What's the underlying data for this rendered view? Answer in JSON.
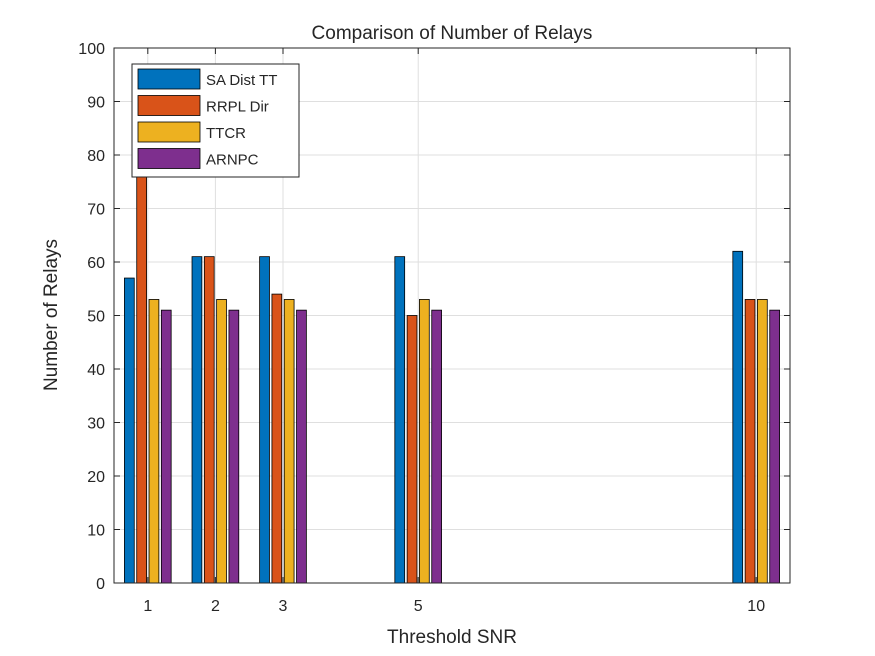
{
  "chart_data": {
    "type": "bar",
    "title": "Comparison of Number of Relays",
    "xlabel": "Threshold SNR",
    "ylabel": "Number of Relays",
    "x": [
      1,
      2,
      3,
      5,
      10
    ],
    "x_tick_labels": [
      "1",
      "2",
      "3",
      "5",
      "10"
    ],
    "xlim": [
      0.5,
      10.5
    ],
    "ylim": [
      0,
      100
    ],
    "y_ticks": [
      0,
      10,
      20,
      30,
      40,
      50,
      60,
      70,
      80,
      90,
      100
    ],
    "grid": true,
    "legend_position": "top-left",
    "series": [
      {
        "name": "SA Dist TT",
        "color": "#0072BD",
        "values": [
          57,
          61,
          61,
          61,
          62
        ]
      },
      {
        "name": "RRPL Dir",
        "color": "#D95319",
        "values": [
          80,
          61,
          54,
          50,
          53
        ]
      },
      {
        "name": "TTCR",
        "color": "#EDB120",
        "values": [
          53,
          53,
          53,
          53,
          53
        ]
      },
      {
        "name": "ARNPC",
        "color": "#7E2F8E",
        "values": [
          51,
          51,
          51,
          51,
          51
        ]
      }
    ]
  }
}
